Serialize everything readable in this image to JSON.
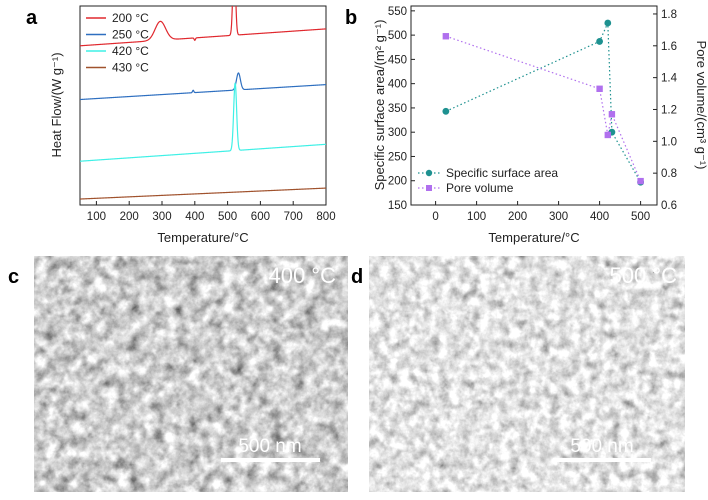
{
  "panels": {
    "a": "a",
    "b": "b",
    "c": "c",
    "d": "d"
  },
  "chart_data": [
    {
      "panel": "a",
      "type": "line",
      "xlabel": "Temperature/°C",
      "ylabel": "Heat Flow/(W g⁻¹)",
      "xlim": [
        50,
        800
      ],
      "xticks": [
        100,
        200,
        300,
        400,
        500,
        600,
        700,
        800
      ],
      "legend_position": "top-left",
      "series": [
        {
          "name": "200 °C",
          "color": "#e0282e",
          "baseline": 0.8,
          "slope": 0.085,
          "peaks": [
            [
              520,
              0.4,
              4
            ],
            [
              295,
              0.095,
              16
            ],
            [
              400,
              -0.012,
              2
            ]
          ]
        },
        {
          "name": "250 °C",
          "color": "#2e6fc0",
          "baseline": 0.53,
          "slope": 0.075,
          "peaks": [
            [
              533,
              0.085,
              6
            ],
            [
              395,
              0.012,
              2
            ]
          ]
        },
        {
          "name": "420 °C",
          "color": "#3ff0e6",
          "baseline": 0.22,
          "slope": 0.085,
          "peaks": [
            [
              523,
              0.34,
              4.5
            ]
          ]
        },
        {
          "name": "430 °C",
          "color": "#a0522d",
          "baseline": 0.03,
          "slope": 0.055,
          "peaks": []
        }
      ]
    },
    {
      "panel": "b",
      "type": "scatter",
      "xlabel": "Temperature/°C",
      "ylabel": "Specific surface area/(m² g⁻¹)",
      "ylabel_right": "Pore volume/(cm³ g⁻¹)",
      "xlim": [
        -60,
        540
      ],
      "xticks": [
        0,
        100,
        200,
        300,
        400,
        500
      ],
      "ylim": [
        150,
        560
      ],
      "yticks": [
        150,
        200,
        250,
        300,
        350,
        400,
        450,
        500,
        550
      ],
      "ylim_right": [
        0.6,
        1.85
      ],
      "yticks_right": [
        0.6,
        0.8,
        1.0,
        1.2,
        1.4,
        1.6,
        1.8
      ],
      "legend_position": "bottom-left",
      "series": [
        {
          "name": "Specific surface area",
          "axis": "left",
          "color": "#1e9190",
          "marker": "circle",
          "x": [
            25,
            400,
            420,
            430,
            500
          ],
          "y": [
            343,
            487,
            525,
            300,
            197
          ]
        },
        {
          "name": "Pore volume",
          "axis": "right",
          "color": "#b070ee",
          "marker": "square",
          "x": [
            25,
            400,
            420,
            430,
            500
          ],
          "y": [
            1.66,
            1.33,
            1.04,
            1.17,
            0.75
          ]
        }
      ]
    }
  ],
  "sem": [
    {
      "panel": "c",
      "label": "400 °C",
      "scale": "500 nm"
    },
    {
      "panel": "d",
      "label": "500 °C",
      "scale": "500 nm"
    }
  ]
}
